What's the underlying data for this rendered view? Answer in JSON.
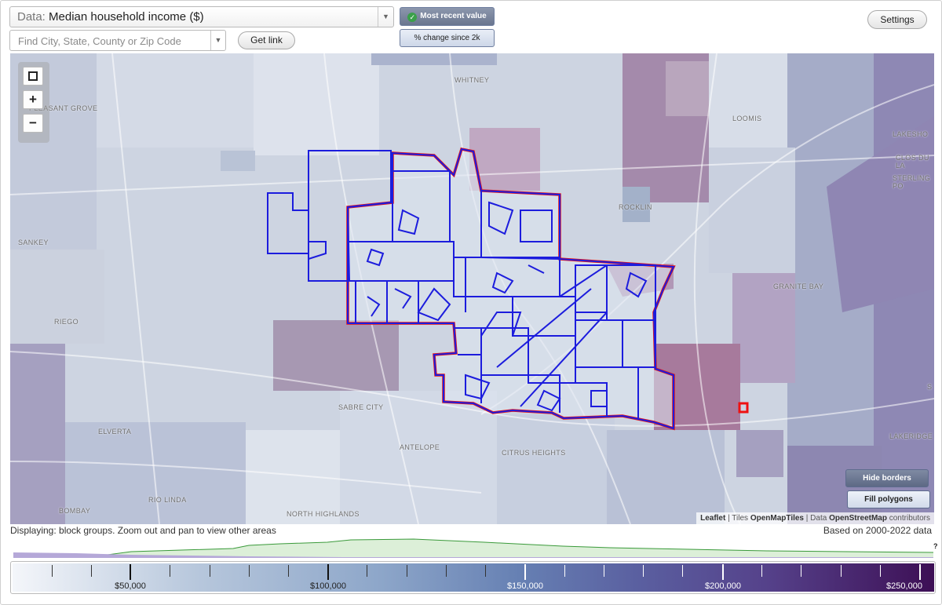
{
  "data_selector": {
    "prefix": "Data:",
    "value": "Median household income ($)"
  },
  "search": {
    "placeholder": "Find City, State, County or Zip Code"
  },
  "buttons": {
    "get_link": "Get link",
    "most_recent": "Most recent value",
    "pct_change": "% change since 2k",
    "settings": "Settings",
    "hide_borders": "Hide borders",
    "fill_polygons": "Fill polygons"
  },
  "map": {
    "zoom_in": "+",
    "zoom_out": "−",
    "places": {
      "whitney": "WHITNEY",
      "pleasant_grove": "PLEASANT GROVE",
      "loomis": "LOOMIS",
      "lakeshore": "LAKESHO",
      "clos_du_lac": "CLOS DU LA",
      "sterling_pointe": "STERLING PO",
      "rocklin": "ROCKLIN",
      "sankey": "SANKEY",
      "granite_bay": "GRANITE BAY",
      "rego": "RIEGO",
      "sabre_city": "SABRE CITY",
      "elverta": "ELVERTA",
      "antelope": "ANTELOPE",
      "citrus_heights": "CITRUS HEIGHTS",
      "rio_linda": "RIO LINDA",
      "bombay": "BOMBAY",
      "north_highlands": "NORTH HIGHLANDS",
      "lakeridge": "LAKERIDGE",
      "s_edge": "S"
    },
    "attribution": {
      "leaflet": "Leaflet",
      "tiles_prefix": "| Tiles",
      "tiles": "OpenMapTiles",
      "data_prefix": "| Data",
      "data": "OpenStreetMap",
      "suffix": "contributors"
    }
  },
  "status": {
    "displaying": "Displaying: block groups. Zoom out and pan to view other areas",
    "based_on": "Based on 2000-2022 data",
    "hist_help": "?"
  },
  "legend": {
    "labels": [
      "$50,000",
      "$100,000",
      "$150,000",
      "$200,000",
      "$250,000"
    ]
  }
}
